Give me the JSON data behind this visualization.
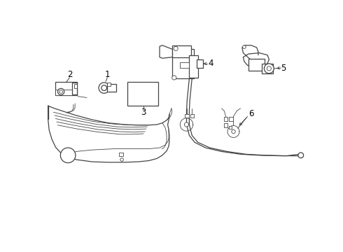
{
  "bg_color": "#ffffff",
  "line_color": "#444444",
  "label_color": "#000000",
  "label_fontsize": 8.5,
  "fig_w": 4.9,
  "fig_h": 3.6,
  "dpi": 100
}
